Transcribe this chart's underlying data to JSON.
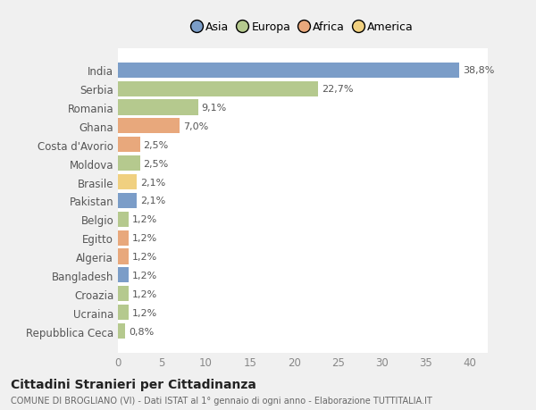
{
  "countries": [
    "India",
    "Serbia",
    "Romania",
    "Ghana",
    "Costa d'Avorio",
    "Moldova",
    "Brasile",
    "Pakistan",
    "Belgio",
    "Egitto",
    "Algeria",
    "Bangladesh",
    "Croazia",
    "Ucraina",
    "Repubblica Ceca"
  ],
  "values": [
    38.8,
    22.7,
    9.1,
    7.0,
    2.5,
    2.5,
    2.1,
    2.1,
    1.2,
    1.2,
    1.2,
    1.2,
    1.2,
    1.2,
    0.8
  ],
  "labels": [
    "38,8%",
    "22,7%",
    "9,1%",
    "7,0%",
    "2,5%",
    "2,5%",
    "2,1%",
    "2,1%",
    "1,2%",
    "1,2%",
    "1,2%",
    "1,2%",
    "1,2%",
    "1,2%",
    "0,8%"
  ],
  "colors": [
    "#7b9dc8",
    "#b5c98e",
    "#b5c98e",
    "#e8a87c",
    "#e8a87c",
    "#b5c98e",
    "#f0d080",
    "#7b9dc8",
    "#b5c98e",
    "#e8a87c",
    "#e8a87c",
    "#7b9dc8",
    "#b5c98e",
    "#b5c98e",
    "#b5c98e"
  ],
  "legend_labels": [
    "Asia",
    "Europa",
    "Africa",
    "America"
  ],
  "legend_colors": [
    "#7b9dc8",
    "#b5c98e",
    "#e8a87c",
    "#f0d080"
  ],
  "title": "Cittadini Stranieri per Cittadinanza",
  "subtitle": "COMUNE DI BROGLIANO (VI) - Dati ISTAT al 1° gennaio di ogni anno - Elaborazione TUTTITALIA.IT",
  "xlim": [
    0,
    42
  ],
  "xticks": [
    0,
    5,
    10,
    15,
    20,
    25,
    30,
    35,
    40
  ],
  "background_color": "#f0f0f0",
  "plot_bg_color": "#ffffff",
  "grid_color": "#ffffff"
}
